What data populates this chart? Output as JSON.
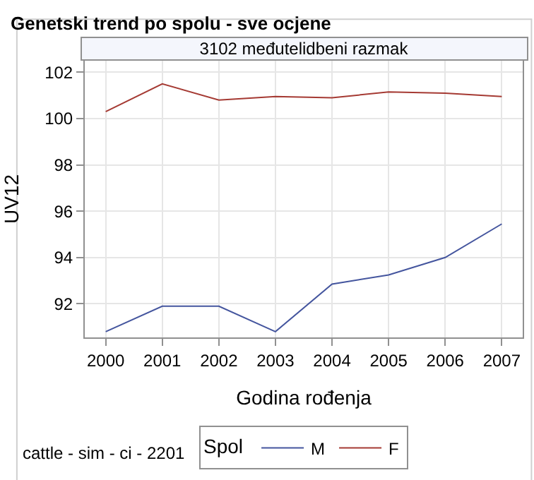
{
  "chart_data": {
    "type": "line",
    "title": "Genetski trend po spolu - sve ocjene",
    "subtitle": "3102 međutelidbeni razmak",
    "xlabel": "Godina rođenja",
    "ylabel": "UV12",
    "legend_title": "Spol",
    "annotations": [
      "cattle - sim - ci - 2201"
    ],
    "x": [
      2000,
      2001,
      2002,
      2003,
      2004,
      2005,
      2006,
      2007
    ],
    "series": [
      {
        "name": "M",
        "color": "#44559e",
        "values": [
          90.8,
          91.9,
          91.9,
          90.8,
          92.85,
          93.25,
          94.0,
          95.45
        ]
      },
      {
        "name": "F",
        "color": "#a53a33",
        "values": [
          100.3,
          101.5,
          100.8,
          100.95,
          100.9,
          101.15,
          101.1,
          100.95
        ]
      }
    ],
    "xlim": [
      1999.63,
      2007.37
    ],
    "xticks": [
      2000,
      2001,
      2002,
      2003,
      2004,
      2005,
      2006,
      2007
    ],
    "ylim": [
      90.55,
      102.5
    ],
    "yticks": [
      92,
      94,
      96,
      98,
      100,
      102
    ],
    "grid": true,
    "legend": "bottom",
    "marker": "none",
    "line_style": "solid"
  }
}
